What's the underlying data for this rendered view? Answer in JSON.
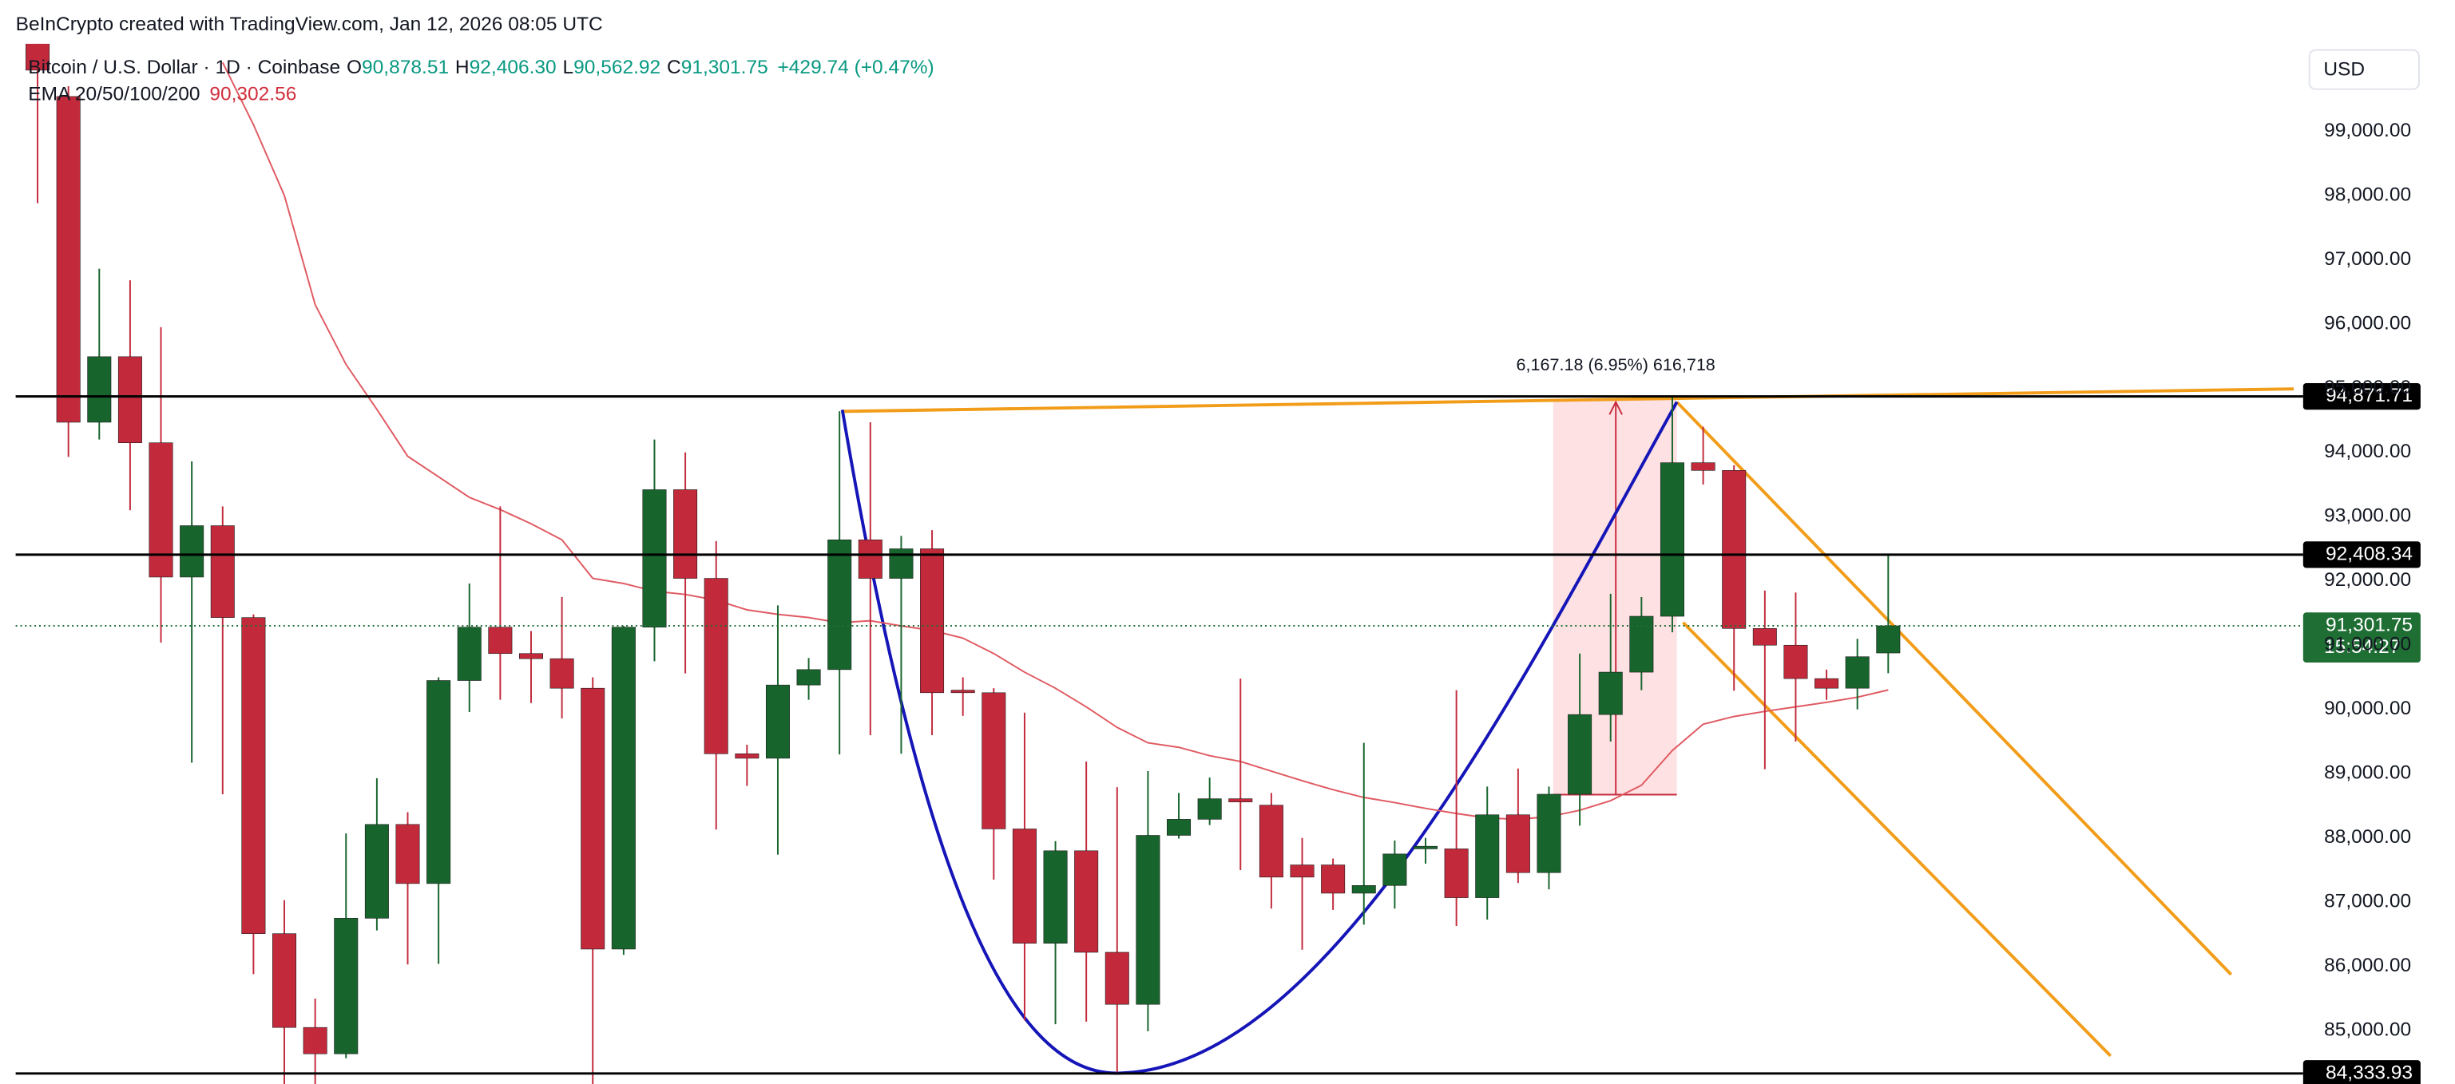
{
  "header": {
    "attribution": "BeInCrypto created with TradingView.com, Jan 12, 2026 08:05 UTC",
    "symbol": "Bitcoin / U.S. Dollar · 1D · Coinbase",
    "ohlc": [
      {
        "label": "O",
        "value": "90,878.51"
      },
      {
        "label": "H",
        "value": "92,406.30"
      },
      {
        "label": "L",
        "value": "90,562.92"
      },
      {
        "label": "C",
        "value": "91,301.75"
      }
    ],
    "change": "+429.74 (+0.47%)",
    "ema_label": "EMA 20/50/100/200",
    "ema_value": "90,302.56",
    "currency": "USD"
  },
  "chart_data": {
    "type": "candlestick",
    "open": [
      100400,
      99540,
      94470,
      95490,
      94150,
      92060,
      92860,
      91430,
      86510,
      85050,
      84640,
      86750,
      88210,
      87290,
      90450,
      91280,
      90870,
      90790,
      90330,
      86270,
      91280,
      93420,
      92040,
      89310,
      89240,
      90380,
      90620,
      92640,
      92040,
      92500,
      90300,
      90260,
      88140,
      86360,
      87800,
      86220,
      85410,
      88040,
      88290,
      88610,
      88510,
      87580,
      87580,
      87140,
      87260,
      87830,
      87830,
      87070,
      88360,
      87460,
      88680,
      89920,
      90580,
      91450,
      93840,
      93720,
      91260,
      91000,
      90480,
      90330,
      90878.51
    ],
    "high": [
      100500,
      99700,
      96860,
      96680,
      95950,
      93860,
      93160,
      91480,
      87030,
      85500,
      88070,
      88930,
      88400,
      90500,
      91960,
      93160,
      91220,
      91750,
      90500,
      91300,
      94200,
      94000,
      92620,
      89450,
      91620,
      90800,
      94640,
      94470,
      92700,
      92790,
      90500,
      90330,
      89950,
      87950,
      89190,
      88790,
      89040,
      88700,
      88940,
      90480,
      88700,
      88000,
      87680,
      89480,
      87960,
      88000,
      90300,
      88800,
      89080,
      88800,
      90870,
      91800,
      91750,
      94870,
      94400,
      93800,
      91850,
      91820,
      90620,
      91100,
      92406.3
    ],
    "low": [
      97880,
      93930,
      94200,
      93100,
      91040,
      89170,
      88680,
      85880,
      84100,
      84100,
      84570,
      86560,
      86030,
      86040,
      89960,
      90150,
      90100,
      89860,
      84000,
      86180,
      90750,
      90560,
      88130,
      88810,
      87740,
      90150,
      89300,
      89600,
      89310,
      89600,
      89900,
      87350,
      85160,
      85100,
      85140,
      84330,
      84990,
      87990,
      88200,
      87500,
      86900,
      86260,
      86880,
      86650,
      86900,
      87600,
      86630,
      86730,
      87300,
      87200,
      88190,
      89500,
      90300,
      91200,
      93500,
      90290,
      89070,
      89500,
      90150,
      90000,
      90562.92
    ],
    "close": [
      99950,
      94470,
      95490,
      94150,
      92060,
      92860,
      91430,
      86510,
      85050,
      84640,
      86750,
      88210,
      87290,
      90450,
      91280,
      90870,
      90790,
      90330,
      86270,
      91280,
      93420,
      92040,
      89310,
      89240,
      90380,
      90620,
      92640,
      92040,
      92500,
      90260,
      90260,
      88140,
      86360,
      87800,
      86220,
      85410,
      88040,
      88290,
      88610,
      88560,
      87390,
      87390,
      87140,
      87260,
      87750,
      87870,
      87070,
      88360,
      87460,
      88680,
      89920,
      90580,
      91450,
      93840,
      93720,
      91260,
      91000,
      90480,
      90330,
      90820,
      91301.75
    ],
    "up_color": "#17652d",
    "down_color": "#c22a3c",
    "ema": {
      "color": "#e05a62",
      "values": [
        null,
        null,
        null,
        null,
        null,
        null,
        100070,
        99100,
        98000,
        96300,
        95370,
        94670,
        93940,
        93620,
        93300,
        93110,
        92890,
        92640,
        92040,
        91960,
        91840,
        91790,
        91700,
        91550,
        91480,
        91430,
        91350,
        91380,
        91300,
        91230,
        91110,
        90870,
        90580,
        90330,
        90040,
        89720,
        89480,
        89410,
        89280,
        89190,
        89040,
        88890,
        88750,
        88630,
        88550,
        88460,
        88380,
        88310,
        88290,
        88330,
        88430,
        88580,
        88820,
        89360,
        89770,
        89890,
        89970,
        90040,
        90110,
        90190,
        90302.56
      ]
    },
    "ylim": [
      84170,
      100360
    ],
    "yticks": [
      {
        "value": 85000,
        "label": "85,000.00"
      },
      {
        "value": 86000,
        "label": "86,000.00"
      },
      {
        "value": 87000,
        "label": "87,000.00"
      },
      {
        "value": 88000,
        "label": "88,000.00"
      },
      {
        "value": 89000,
        "label": "89,000.00"
      },
      {
        "value": 90000,
        "label": "90,000.00"
      },
      {
        "value": 91000,
        "label": "91,000.00"
      },
      {
        "value": 92000,
        "label": "92,000.00"
      },
      {
        "value": 93000,
        "label": "93,000.00"
      },
      {
        "value": 94000,
        "label": "94,000.00"
      },
      {
        "value": 95000,
        "label": "95,000.00"
      },
      {
        "value": 96000,
        "label": "96,000.00"
      },
      {
        "value": 97000,
        "label": "97,000.00"
      },
      {
        "value": 98000,
        "label": "98,000.00"
      },
      {
        "value": 99000,
        "label": "99,000.00"
      }
    ],
    "grid": false,
    "price_lines": [
      {
        "value": 94871.71,
        "label": "94,871.71",
        "style": "solid",
        "color": "#000000"
      },
      {
        "value": 92408.34,
        "label": "92,408.34",
        "style": "solid",
        "color": "#000000"
      },
      {
        "value": 91301.75,
        "label": "91,301.75",
        "style": "dotted",
        "color": "#1f6e34",
        "countdown": "15:54:27"
      },
      {
        "value": 84333.93,
        "label": "84,333.93",
        "style": "solid",
        "color": "#000000"
      }
    ],
    "annotation": "6,167.18 (6.95%) 616,718"
  }
}
